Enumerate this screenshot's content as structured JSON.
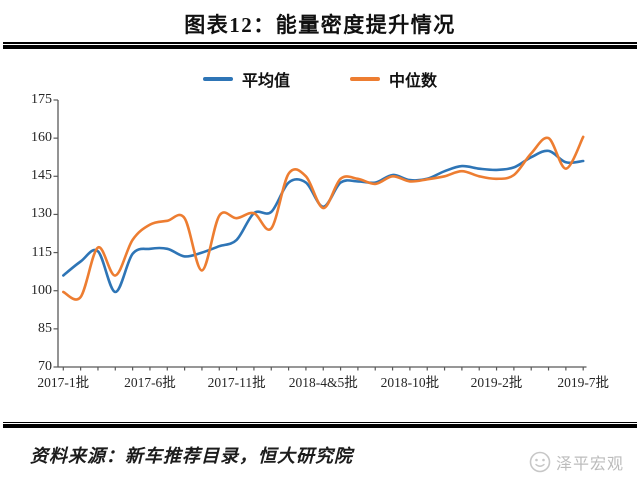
{
  "title": "图表12：能量密度提升情况",
  "legend": {
    "series1_label": "平均值",
    "series2_label": "中位数"
  },
  "source_note": "资料来源：新车推荐目录，恒大研究院",
  "watermark": "泽平宏观",
  "chart_data": {
    "type": "line",
    "title": "图表12：能量密度提升情况",
    "grid": false,
    "legend_position": "top",
    "smooth": true,
    "ylim": [
      70,
      175
    ],
    "ytick_step": 15,
    "y_tick_labels": [
      "175",
      "160",
      "145",
      "130",
      "115",
      "100",
      "85",
      "70"
    ],
    "x_tick_labels": [
      "2017-1批",
      "2017-6批",
      "2017-11批",
      "2018-4&5批",
      "2018-10批",
      "2019-2批",
      "2019-7批"
    ],
    "x_tick_label_indices": [
      0,
      5,
      10,
      15,
      20,
      25,
      30
    ],
    "n_points": 31,
    "axis_color": "#595959",
    "series": [
      {
        "name": "平均值",
        "color": "#2E75B6",
        "values": [
          106,
          111.5,
          115.5,
          99.5,
          114.5,
          116.5,
          116.5,
          113.5,
          115,
          117.5,
          120,
          130.5,
          131,
          142.5,
          142.5,
          133,
          142.5,
          143,
          142.5,
          145.5,
          143.5,
          144,
          147,
          149,
          148,
          147.5,
          148.5,
          152.5,
          155,
          150.5,
          151
        ]
      },
      {
        "name": "中位数",
        "color": "#ED7D31",
        "values": [
          99.5,
          97.5,
          117,
          106,
          120,
          126,
          127.5,
          128.5,
          108,
          129.5,
          128.5,
          130.5,
          124.5,
          146,
          145,
          132.5,
          144,
          144,
          142,
          145,
          143,
          143.8,
          145,
          147,
          145,
          144,
          145.5,
          154,
          160,
          148,
          160.5
        ]
      }
    ]
  }
}
